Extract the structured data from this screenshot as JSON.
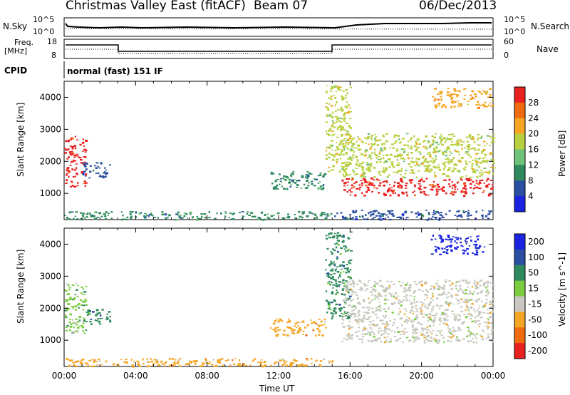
{
  "header": {
    "title": "Christmas Valley East (fitACF)",
    "beam": "Beam 07",
    "date": "06/Dec/2013"
  },
  "summary_panels": {
    "noise": {
      "left_label": "N.Sky",
      "right_label": "N.Search",
      "left_ticks": [
        "10^5",
        "10^0"
      ],
      "right_ticks": [
        "10^5",
        "10^0"
      ]
    },
    "freq": {
      "left_label_1": "Freq.",
      "left_label_2": "[MHz]",
      "left_ticks": [
        "18",
        "8"
      ],
      "right_label": "Nave",
      "right_ticks": [
        "60",
        "0"
      ]
    },
    "cpid": {
      "label": "CPID",
      "value": "normal (fast) 151 IF"
    }
  },
  "chart_data": [
    {
      "type": "heatmap",
      "title": "Power",
      "xlabel": "",
      "ylabel": "Slant Range [km]",
      "xlim": [
        "00:00",
        "24:00"
      ],
      "ylim": [
        180,
        4500
      ],
      "x_ticks": [
        "00:00",
        "04:00",
        "08:00",
        "12:00",
        "16:00",
        "20:00",
        "00:00"
      ],
      "y_ticks": [
        1000,
        2000,
        3000,
        4000
      ],
      "colorbar": {
        "label": "Power [dB]",
        "ticks": [
          "4",
          "8",
          "12",
          "16",
          "20",
          "24",
          "28"
        ],
        "colors": [
          "#1a23e0",
          "#2a4fa0",
          "#2e8a5c",
          "#6ec27a",
          "#b8d040",
          "#f5a623",
          "#f06a10",
          "#e82020"
        ]
      },
      "regions": [
        {
          "t": [
            0.0,
            1.2
          ],
          "r": [
            1200,
            2800
          ],
          "level": 28
        },
        {
          "t": [
            1.0,
            2.6
          ],
          "r": [
            1500,
            2000
          ],
          "level": 4
        },
        {
          "t": [
            0.0,
            15.0
          ],
          "r": [
            200,
            450
          ],
          "level": 8
        },
        {
          "t": [
            11.5,
            14.6
          ],
          "r": [
            1150,
            1700
          ],
          "level": 8
        },
        {
          "t": [
            14.6,
            16.0
          ],
          "r": [
            1700,
            4400
          ],
          "level": 16
        },
        {
          "t": [
            15.5,
            24.0
          ],
          "r": [
            950,
            1500
          ],
          "level": 28
        },
        {
          "t": [
            15.5,
            24.0
          ],
          "r": [
            1500,
            2900
          ],
          "level": 16
        },
        {
          "t": [
            15.0,
            24.0
          ],
          "r": [
            200,
            500
          ],
          "level": 4
        },
        {
          "t": [
            20.5,
            24.0
          ],
          "r": [
            3700,
            4300
          ],
          "level": 20
        }
      ]
    },
    {
      "type": "heatmap",
      "title": "Velocity",
      "xlabel": "Time UT",
      "ylabel": "Slant Range [km]",
      "xlim": [
        "00:00",
        "24:00"
      ],
      "ylim": [
        180,
        4500
      ],
      "x_ticks": [
        "00:00",
        "04:00",
        "08:00",
        "12:00",
        "16:00",
        "20:00",
        "00:00"
      ],
      "y_ticks": [
        1000,
        2000,
        3000,
        4000
      ],
      "colorbar": {
        "label": "Velocity [m s^-1]",
        "ticks": [
          "200",
          "100",
          "50",
          "15",
          "-15",
          "-50",
          "-100",
          "-200"
        ],
        "colors": [
          "#1a23e0",
          "#2a4fa0",
          "#2e8a5c",
          "#7ccc40",
          "#c8c8c0",
          "#f5a623",
          "#f06a10",
          "#e82020"
        ]
      },
      "regions": [
        {
          "t": [
            0.0,
            1.2
          ],
          "r": [
            1200,
            2800
          ],
          "level": 15
        },
        {
          "t": [
            1.0,
            2.6
          ],
          "r": [
            1500,
            2000
          ],
          "level": 50
        },
        {
          "t": [
            0.0,
            15.0
          ],
          "r": [
            200,
            450
          ],
          "level": -50
        },
        {
          "t": [
            11.5,
            14.6
          ],
          "r": [
            1150,
            1700
          ],
          "level": -50
        },
        {
          "t": [
            14.6,
            16.0
          ],
          "r": [
            1700,
            4400
          ],
          "level": 50
        },
        {
          "t": [
            15.5,
            24.0
          ],
          "r": [
            950,
            2900
          ],
          "level": -15
        },
        {
          "t": [
            20.5,
            23.5
          ],
          "r": [
            3700,
            4300
          ],
          "level": 200
        }
      ]
    }
  ]
}
